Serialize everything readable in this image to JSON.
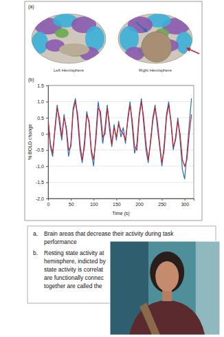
{
  "figure": {
    "panel_a_label": "(a)",
    "panel_b_label": "(b)",
    "hemisphere_labels": [
      "Left Hemisphere",
      "Right Hemisphere"
    ]
  },
  "chart_data": {
    "type": "line",
    "x_label": "Time (s)",
    "y_label": "% BOLD change",
    "x": [
      0,
      5,
      10,
      15,
      20,
      25,
      30,
      35,
      40,
      45,
      50,
      55,
      60,
      65,
      70,
      75,
      80,
      85,
      90,
      95,
      100,
      105,
      110,
      115,
      120,
      125,
      130,
      135,
      140,
      145,
      150,
      155,
      160,
      165,
      170,
      175,
      180,
      185,
      190,
      195,
      200,
      205,
      210,
      215,
      220,
      225,
      230,
      235,
      240,
      245,
      250,
      255,
      260,
      265,
      270,
      275,
      280,
      285,
      290,
      295,
      300,
      305,
      310,
      315
    ],
    "series": [
      {
        "color": "#2b6cb3",
        "values": [
          0.5,
          -0.4,
          -0.7,
          0.2,
          0.9,
          0.3,
          -0.2,
          0.6,
          0.1,
          -0.7,
          -0.3,
          0.8,
          1.1,
          0.4,
          -0.5,
          -0.9,
          -0.2,
          0.7,
          0.3,
          -0.6,
          -1.0,
          0.0,
          1.0,
          0.5,
          -0.3,
          0.2,
          0.9,
          0.1,
          -0.4,
          0.3,
          -0.2,
          0.4,
          -0.1,
          0.2,
          -0.3,
          0.5,
          1.0,
          0.2,
          -0.6,
          -0.3,
          0.6,
          1.1,
          0.3,
          -0.5,
          -0.9,
          -0.2,
          0.5,
          0.9,
          0.2,
          -0.4,
          -1.0,
          -0.3,
          0.6,
          1.0,
          0.3,
          -0.5,
          -0.1,
          0.5,
          -0.2,
          -1.1,
          -1.4,
          -0.6,
          0.3,
          1.1
        ]
      },
      {
        "color": "#c8202a",
        "values": [
          0.4,
          -0.3,
          -0.6,
          0.1,
          0.8,
          0.5,
          -0.1,
          0.5,
          0.2,
          -0.5,
          -0.4,
          0.7,
          1.0,
          0.6,
          -0.3,
          -0.8,
          -0.4,
          0.6,
          0.4,
          -0.5,
          -0.8,
          -0.2,
          0.8,
          0.7,
          -0.1,
          0.0,
          0.8,
          0.3,
          -0.3,
          0.2,
          -0.1,
          0.3,
          0.1,
          0.0,
          -0.2,
          0.4,
          0.9,
          0.4,
          -0.4,
          -0.5,
          0.5,
          1.0,
          0.5,
          -0.3,
          -0.8,
          -0.3,
          0.4,
          0.8,
          0.4,
          -0.3,
          -0.9,
          -0.5,
          0.5,
          0.9,
          0.4,
          -0.4,
          -0.2,
          0.4,
          0.0,
          -0.8,
          -1.0,
          -0.8,
          0.0,
          0.6
        ]
      }
    ],
    "xlim": [
      0,
      320
    ],
    "xticks": [
      0,
      50,
      100,
      150,
      200,
      250,
      300
    ],
    "ylim": [
      -2.0,
      1.5
    ],
    "yticks": [
      {
        "value": 1.5,
        "label": "1.5"
      },
      {
        "value": 1.0,
        "label": "1.0"
      },
      {
        "value": 0.5,
        "label": "0.5"
      },
      0,
      {
        "value": -0.5,
        "label": "-0.5"
      },
      {
        "value": -1.0,
        "label": "-1.0"
      },
      {
        "value": -1.5,
        "label": "-1.5"
      },
      {
        "value": -2.0,
        "label": "-2.0"
      }
    ],
    "grid": true
  },
  "caption": {
    "items": [
      {
        "letter": "a.",
        "lines": [
          "Brain areas that decrease their activity during task",
          "performance"
        ]
      },
      {
        "letter": "b.",
        "lines": [
          "Resting state activity at",
          "hemisphere, indicted by",
          "state activity is correlat",
          "are functionally connec",
          "together are called the"
        ]
      }
    ]
  }
}
